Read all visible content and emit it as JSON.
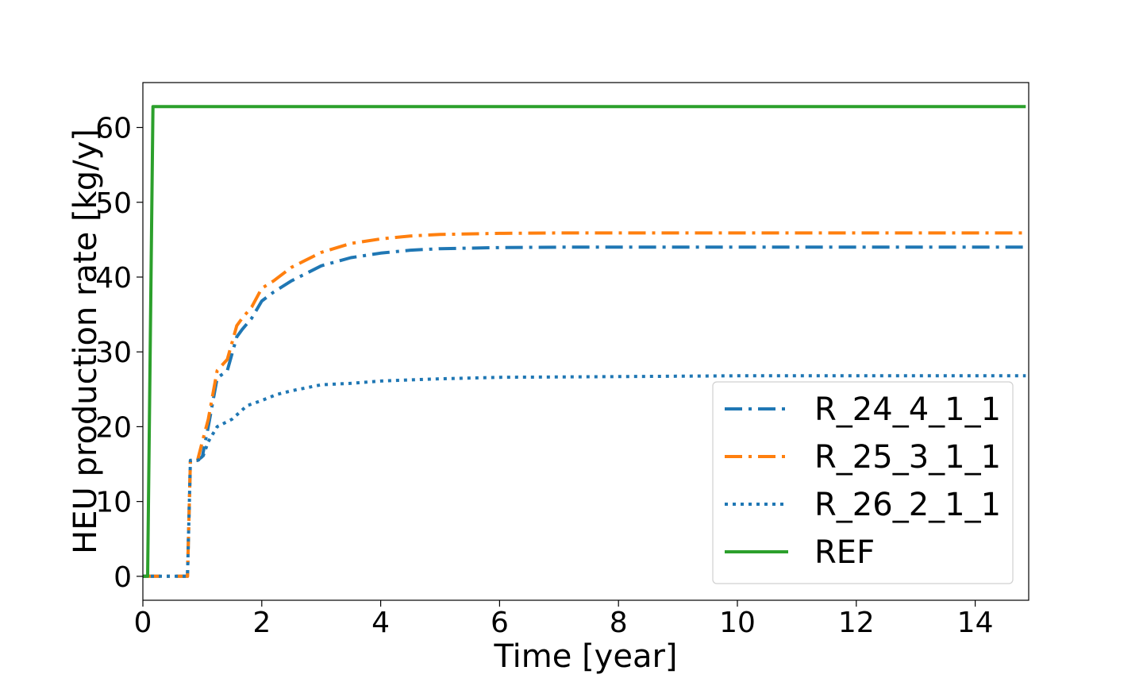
{
  "chart_data": {
    "type": "line",
    "xlabel": "Time [year]",
    "ylabel": "HEU production rate [kg/y]",
    "xlim": [
      0,
      14.9
    ],
    "ylim": [
      -3.2,
      66
    ],
    "xticks": [
      0,
      2,
      4,
      6,
      8,
      10,
      12,
      14
    ],
    "yticks": [
      0,
      10,
      20,
      30,
      40,
      50,
      60
    ],
    "grid": false,
    "legend_position": "lower-right",
    "series": [
      {
        "name": "R_24_4_1_1",
        "color": "#1f77b4",
        "style": "dashdot",
        "points": [
          [
            0,
            0
          ],
          [
            0.17,
            0
          ],
          [
            0.67,
            0
          ],
          [
            0.75,
            0
          ],
          [
            0.8,
            15.5
          ],
          [
            0.92,
            15.5
          ],
          [
            1.0,
            16
          ],
          [
            1.1,
            20
          ],
          [
            1.25,
            26.5
          ],
          [
            1.42,
            27.5
          ],
          [
            1.58,
            32
          ],
          [
            1.67,
            33
          ],
          [
            1.83,
            34.5
          ],
          [
            2.0,
            36.8
          ],
          [
            2.2,
            38
          ],
          [
            2.5,
            39.5
          ],
          [
            3.0,
            41.5
          ],
          [
            3.5,
            42.6
          ],
          [
            4.0,
            43.2
          ],
          [
            4.5,
            43.6
          ],
          [
            5.0,
            43.8
          ],
          [
            6.0,
            43.95
          ],
          [
            7.0,
            44
          ],
          [
            8.0,
            44
          ],
          [
            10.0,
            44
          ],
          [
            12.0,
            44
          ],
          [
            14.0,
            44
          ],
          [
            14.85,
            44
          ]
        ]
      },
      {
        "name": "R_25_3_1_1",
        "color": "#ff7f0e",
        "style": "dashdot",
        "points": [
          [
            0,
            0
          ],
          [
            0.17,
            0
          ],
          [
            0.67,
            0
          ],
          [
            0.75,
            0
          ],
          [
            0.8,
            15.5
          ],
          [
            0.92,
            15.5
          ],
          [
            1.0,
            18
          ],
          [
            1.1,
            21
          ],
          [
            1.25,
            27.5
          ],
          [
            1.42,
            29
          ],
          [
            1.58,
            33.5
          ],
          [
            1.67,
            34.5
          ],
          [
            1.83,
            36
          ],
          [
            2.0,
            38.5
          ],
          [
            2.2,
            39.5
          ],
          [
            2.5,
            41.3
          ],
          [
            3.0,
            43.3
          ],
          [
            3.5,
            44.5
          ],
          [
            4.0,
            45.1
          ],
          [
            4.5,
            45.5
          ],
          [
            5.0,
            45.7
          ],
          [
            6.0,
            45.85
          ],
          [
            7.0,
            45.9
          ],
          [
            8.0,
            45.9
          ],
          [
            10.0,
            45.9
          ],
          [
            12.0,
            45.9
          ],
          [
            14.0,
            45.9
          ],
          [
            14.85,
            45.9
          ]
        ]
      },
      {
        "name": "R_26_2_1_1",
        "color": "#1f77b4",
        "style": "dotted",
        "points": [
          [
            0,
            0
          ],
          [
            0.17,
            0
          ],
          [
            0.67,
            0
          ],
          [
            0.75,
            0
          ],
          [
            0.8,
            15.5
          ],
          [
            0.92,
            15.5
          ],
          [
            1.0,
            15.8
          ],
          [
            1.1,
            18
          ],
          [
            1.25,
            20
          ],
          [
            1.5,
            21
          ],
          [
            1.75,
            22.8
          ],
          [
            2.0,
            23.5
          ],
          [
            2.25,
            24.3
          ],
          [
            2.5,
            24.8
          ],
          [
            3.0,
            25.6
          ],
          [
            3.5,
            25.8
          ],
          [
            4.0,
            26.1
          ],
          [
            5.0,
            26.4
          ],
          [
            6.0,
            26.6
          ],
          [
            8.0,
            26.7
          ],
          [
            10.0,
            26.8
          ],
          [
            12.0,
            26.8
          ],
          [
            14.0,
            26.8
          ],
          [
            14.85,
            26.8
          ]
        ]
      },
      {
        "name": "REF",
        "color": "#2ca02c",
        "style": "solid",
        "points": [
          [
            0,
            0
          ],
          [
            0.08,
            0
          ],
          [
            0.17,
            62.8
          ],
          [
            14.85,
            62.8
          ]
        ]
      }
    ]
  }
}
